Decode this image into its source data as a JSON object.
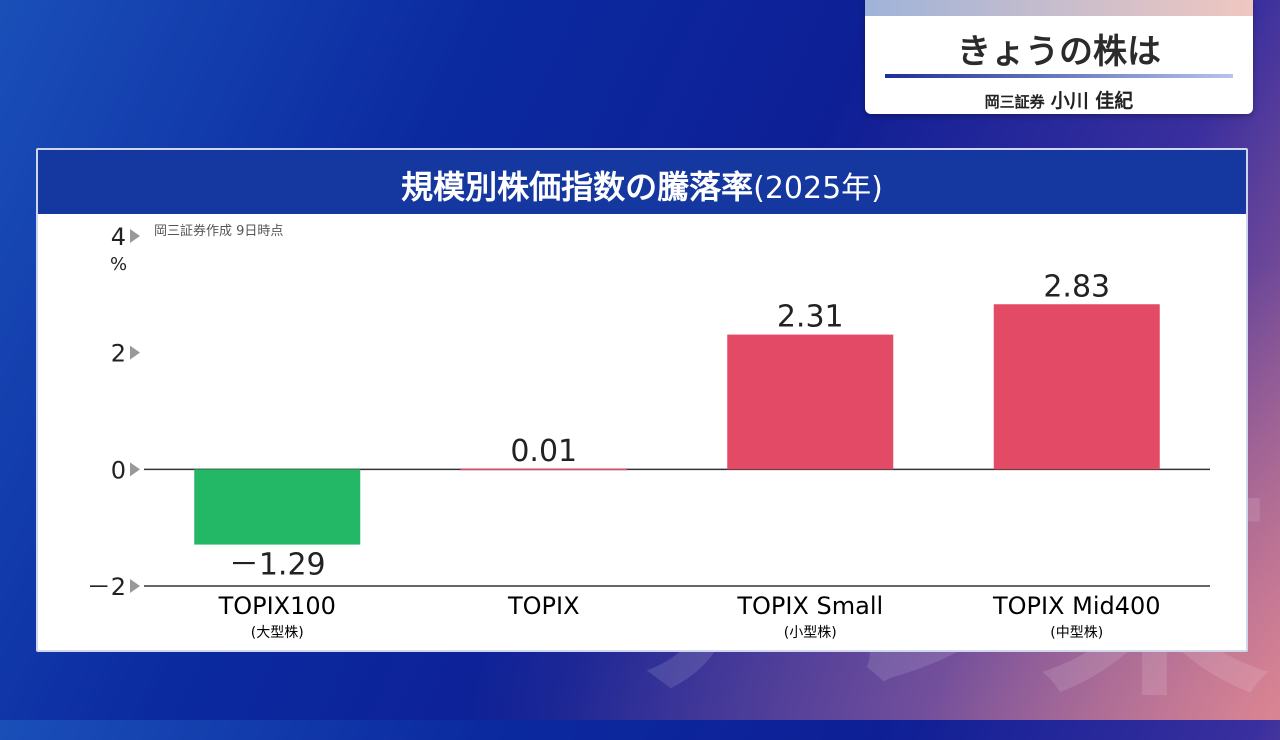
{
  "caption": {
    "title": "きょうの株は",
    "affiliation": "岡三証券",
    "name": "小川 佳紀"
  },
  "watermark": "テレ東",
  "chart_data": {
    "type": "bar",
    "title": "規模別株価指数の騰落率",
    "title_suffix": "(2025年)",
    "source_note": "岡三証券作成 9日時点",
    "ylabel": "%",
    "ylim": [
      -2,
      4
    ],
    "yticks": [
      "4",
      "2",
      "0",
      "－2"
    ],
    "categories": [
      "TOPIX100",
      "TOPIX",
      "TOPIX Small",
      "TOPIX Mid400"
    ],
    "subcategories": [
      "(大型株)",
      "",
      "(小型株)",
      "(中型株)"
    ],
    "values": [
      -1.29,
      0.01,
      2.31,
      2.83
    ],
    "value_labels": [
      "－1.29",
      "0.01",
      "2.31",
      "2.83"
    ],
    "colors": {
      "positive": "#e24a66",
      "negative": "#22b866",
      "header": "#1537a0"
    }
  }
}
